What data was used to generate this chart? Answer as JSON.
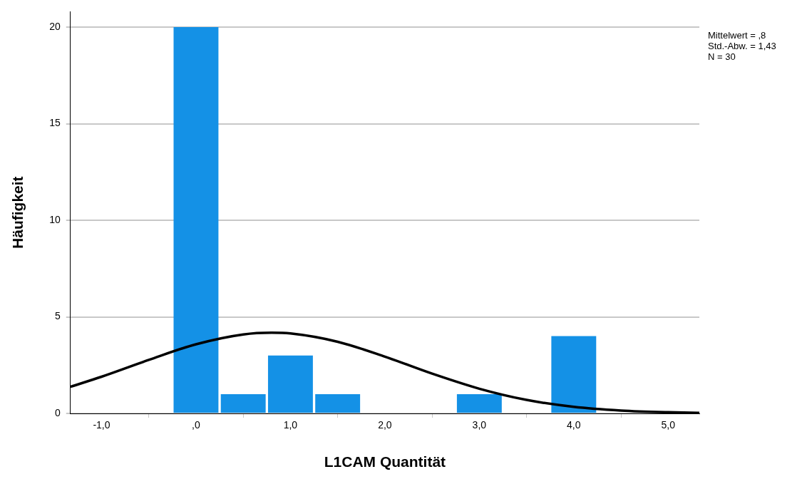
{
  "chart_data": {
    "type": "histogram",
    "xlabel": "L1CAM Quantität",
    "ylabel": "Häufigkeit",
    "annotations": [
      "Mittelwert = ,8",
      "Std.-Abw. = 1,43",
      "N = 30"
    ],
    "xlim": [
      -1.33,
      5.33
    ],
    "ylim": [
      0,
      20.8
    ],
    "xticks": [
      {
        "value": -1,
        "label": "-1,0"
      },
      {
        "value": 0,
        "label": ",0"
      },
      {
        "value": 1,
        "label": "1,0"
      },
      {
        "value": 2,
        "label": "2,0"
      },
      {
        "value": 3,
        "label": "3,0"
      },
      {
        "value": 4,
        "label": "4,0"
      },
      {
        "value": 5,
        "label": "5,0"
      }
    ],
    "yticks": [
      0,
      5,
      10,
      15,
      20
    ],
    "grid": "y",
    "legend": false,
    "series": [
      {
        "color": "#1491e6",
        "bins": [
          -0.25,
          0.25,
          0.75,
          1.25,
          1.75,
          2.25,
          2.75,
          3.25,
          3.75,
          4.25
        ],
        "values": [
          20,
          1,
          3,
          1,
          0,
          0,
          1,
          0,
          4
        ]
      },
      {
        "type": "line",
        "color": "#000000",
        "x": [
          -1.33,
          -1,
          -0.5,
          0,
          0.5,
          0.8,
          1,
          1.5,
          2,
          2.5,
          3,
          3.5,
          4,
          4.5,
          5,
          5.33
        ],
        "values": [
          1.38,
          1.9,
          2.77,
          3.58,
          4.09,
          4.18,
          4.14,
          3.71,
          2.94,
          2.06,
          1.28,
          0.7,
          0.34,
          0.15,
          0.06,
          0.03
        ]
      }
    ]
  }
}
